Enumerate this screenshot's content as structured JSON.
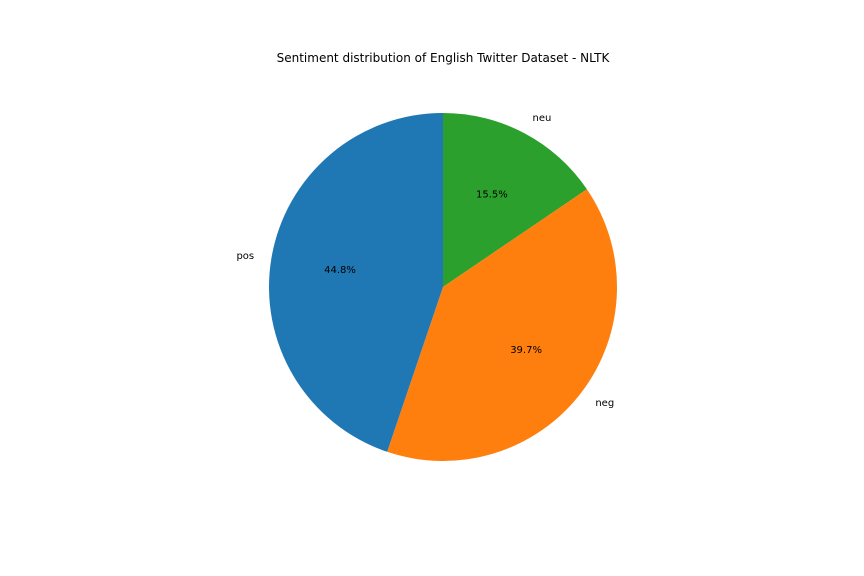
{
  "chart_data": {
    "type": "pie",
    "title": "Sentiment distribution of English Twitter Dataset - NLTK",
    "slices": [
      {
        "label": "neu",
        "value": 15.5,
        "pct_label": "15.5%",
        "color": "#2ca02c"
      },
      {
        "label": "neg",
        "value": 39.7,
        "pct_label": "39.7%",
        "color": "#ff7f0e"
      },
      {
        "label": "pos",
        "value": 44.8,
        "pct_label": "44.8%",
        "color": "#1f77b4"
      }
    ],
    "start_angle": "top",
    "direction": "clockwise",
    "legend": "none"
  }
}
